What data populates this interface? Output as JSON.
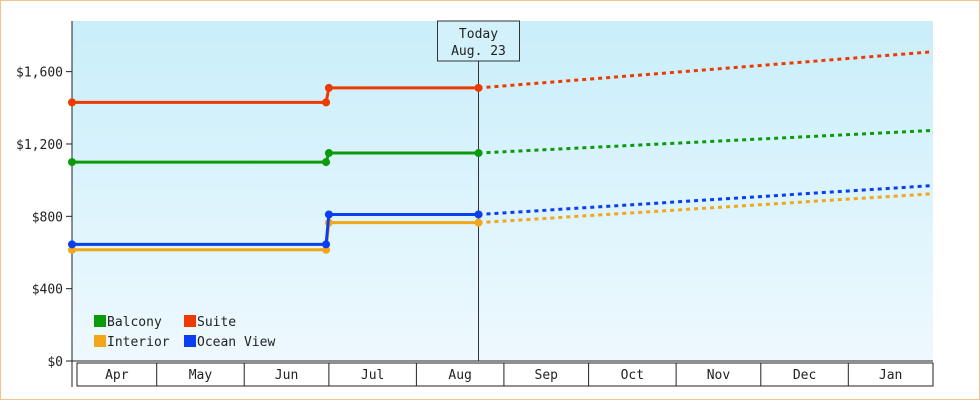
{
  "chart_data": {
    "type": "line",
    "x_months": [
      "Apr",
      "May",
      "Jun",
      "Jul",
      "Aug",
      "Sep",
      "Oct",
      "Nov",
      "Dec",
      "Jan"
    ],
    "y_ticks": [
      "$0",
      "$400",
      "$800",
      "$1,200",
      "$1,600"
    ],
    "ylim": [
      0,
      1880
    ],
    "grid": false,
    "legend_placement": "bottom-left",
    "background_gradient": [
      "#c9eefa",
      "#eef9fe"
    ],
    "today": {
      "line1": "Today",
      "line2": "Aug. 23",
      "date": "2023-08-23"
    },
    "series": [
      {
        "name": "Balcony",
        "color": "#0a9a0a",
        "history": [
          [
            "2023-04-01",
            1100
          ],
          [
            "2023-06-30",
            1100
          ],
          [
            "2023-07-01",
            1150
          ],
          [
            "2023-08-23",
            1150
          ]
        ],
        "forecast": [
          [
            "2023-08-23",
            1150
          ],
          [
            "2024-01-31",
            1275
          ]
        ]
      },
      {
        "name": "Suite",
        "color": "#ee3a00",
        "history": [
          [
            "2023-04-01",
            1430
          ],
          [
            "2023-06-30",
            1430
          ],
          [
            "2023-07-01",
            1510
          ],
          [
            "2023-08-23",
            1510
          ]
        ],
        "forecast": [
          [
            "2023-08-23",
            1510
          ],
          [
            "2024-01-31",
            1710
          ]
        ]
      },
      {
        "name": "Interior",
        "color": "#f2a619",
        "history": [
          [
            "2023-04-01",
            615
          ],
          [
            "2023-06-30",
            615
          ],
          [
            "2023-07-01",
            765
          ],
          [
            "2023-08-23",
            765
          ]
        ],
        "forecast": [
          [
            "2023-08-23",
            765
          ],
          [
            "2024-01-31",
            925
          ]
        ]
      },
      {
        "name": "Ocean View",
        "color": "#0a3ef0",
        "history": [
          [
            "2023-04-01",
            645
          ],
          [
            "2023-06-30",
            645
          ],
          [
            "2023-07-01",
            810
          ],
          [
            "2023-08-23",
            810
          ]
        ],
        "forecast": [
          [
            "2023-08-23",
            810
          ],
          [
            "2024-01-31",
            970
          ]
        ]
      }
    ]
  }
}
